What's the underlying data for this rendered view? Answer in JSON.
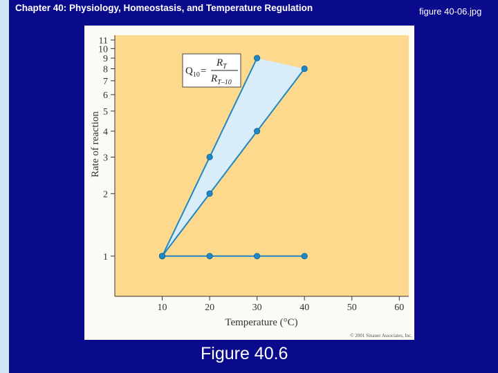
{
  "slide": {
    "title": "Chapter 40: Physiology, Homeostasis, and Temperature Regulation",
    "file_name": "figure 40-06.jpg",
    "caption": "Figure 40.6"
  },
  "colors": {
    "slide_background": "#0a0a8c",
    "left_strip": "#cfe6f6",
    "plot_background": "#fcd98c",
    "band_fill": "#d8ecfa",
    "series": "#1f87c4"
  },
  "chart_data": {
    "type": "line",
    "xlabel": "Temperature (°C)",
    "ylabel": "Rate of reaction",
    "xlim": [
      0,
      62
    ],
    "ylim": [
      0,
      11.6
    ],
    "x_ticks": [
      10,
      20,
      30,
      40,
      50,
      60
    ],
    "y_ticks": [
      1,
      2,
      3,
      4,
      5,
      6,
      7,
      8,
      9,
      10,
      11
    ],
    "y_scale": "log",
    "grid": false,
    "formula": {
      "prefix": "Q",
      "prefix_sub": "10",
      "equals": "=",
      "numerator": "R",
      "numerator_sub": "T",
      "denominator": "R",
      "denominator_sub": "T–10"
    },
    "series": [
      {
        "x": [
          10,
          20,
          30
        ],
        "y": [
          1,
          3,
          9
        ]
      },
      {
        "x": [
          10,
          20,
          30,
          40
        ],
        "y": [
          1,
          2,
          4,
          8
        ]
      },
      {
        "x": [
          10,
          20,
          30,
          40
        ],
        "y": [
          1,
          1,
          1,
          1
        ]
      }
    ],
    "copyright": "© 2001 Sinauer Associates, Inc."
  }
}
